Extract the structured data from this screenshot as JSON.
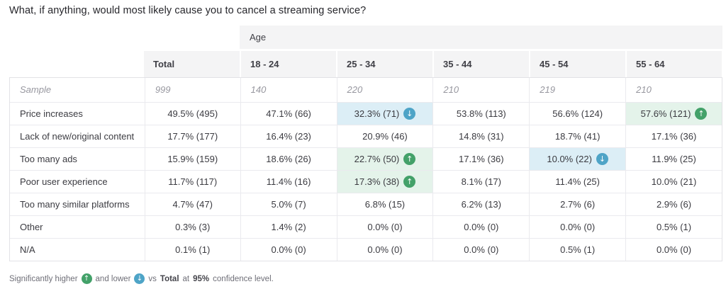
{
  "title": "What, if anything, would most likely cause you to cancel a streaming service?",
  "colors": {
    "header_bg": "#f4f4f5",
    "higher_badge": "#43a169",
    "higher_bg": "#e4f3ea",
    "lower_badge": "#4ea4c7",
    "lower_bg": "#dceef6"
  },
  "icons": {
    "higher": "arrow-up-circle-icon",
    "lower": "arrow-down-circle-icon",
    "glyph_up": "↑",
    "glyph_down": "↓"
  },
  "table": {
    "age_group_label": "Age",
    "columns": [
      "Total",
      "18 - 24",
      "25 - 34",
      "35 - 44",
      "45 - 54",
      "55 - 64"
    ],
    "sample": {
      "label": "Sample",
      "values": [
        "999",
        "140",
        "220",
        "210",
        "219",
        "210"
      ]
    },
    "rows": [
      {
        "label": "Price increases",
        "cells": [
          {
            "text": "49.5% (495)"
          },
          {
            "text": "47.1% (66)"
          },
          {
            "text": "32.3% (71)",
            "flag": "lower"
          },
          {
            "text": "53.8% (113)"
          },
          {
            "text": "56.6% (124)"
          },
          {
            "text": "57.6% (121)",
            "flag": "higher"
          }
        ]
      },
      {
        "label": "Lack of new/original content",
        "cells": [
          {
            "text": "17.7% (177)"
          },
          {
            "text": "16.4% (23)"
          },
          {
            "text": "20.9% (46)"
          },
          {
            "text": "14.8% (31)"
          },
          {
            "text": "18.7% (41)"
          },
          {
            "text": "17.1% (36)"
          }
        ]
      },
      {
        "label": "Too many ads",
        "cells": [
          {
            "text": "15.9% (159)"
          },
          {
            "text": "18.6% (26)"
          },
          {
            "text": "22.7% (50)",
            "flag": "higher"
          },
          {
            "text": "17.1% (36)"
          },
          {
            "text": "10.0% (22)",
            "flag": "lower"
          },
          {
            "text": "11.9% (25)"
          }
        ]
      },
      {
        "label": "Poor user experience",
        "cells": [
          {
            "text": "11.7% (117)"
          },
          {
            "text": "11.4% (16)"
          },
          {
            "text": "17.3% (38)",
            "flag": "higher"
          },
          {
            "text": "8.1% (17)"
          },
          {
            "text": "11.4% (25)"
          },
          {
            "text": "10.0% (21)"
          }
        ]
      },
      {
        "label": "Too many similar platforms",
        "cells": [
          {
            "text": "4.7% (47)"
          },
          {
            "text": "5.0% (7)"
          },
          {
            "text": "6.8% (15)"
          },
          {
            "text": "6.2% (13)"
          },
          {
            "text": "2.7% (6)"
          },
          {
            "text": "2.9% (6)"
          }
        ]
      },
      {
        "label": "Other",
        "cells": [
          {
            "text": "0.3% (3)"
          },
          {
            "text": "1.4% (2)"
          },
          {
            "text": "0.0% (0)"
          },
          {
            "text": "0.0% (0)"
          },
          {
            "text": "0.0% (0)"
          },
          {
            "text": "0.5% (1)"
          }
        ]
      },
      {
        "label": "N/A",
        "cells": [
          {
            "text": "0.1% (1)"
          },
          {
            "text": "0.0% (0)"
          },
          {
            "text": "0.0% (0)"
          },
          {
            "text": "0.0% (0)"
          },
          {
            "text": "0.5% (1)"
          },
          {
            "text": "0.0% (0)"
          }
        ]
      }
    ]
  },
  "footer": {
    "higher_text": "Significantly higher",
    "lower_text": "and lower",
    "vs_text": "vs",
    "total_bold": "Total",
    "at_text": "at",
    "confidence_bold": "95%",
    "tail_text": "confidence level."
  },
  "chart_data": {
    "type": "table",
    "title": "What, if anything, would most likely cause you to cancel a streaming service?",
    "column_group": "Age",
    "columns": [
      "Total",
      "18 - 24",
      "25 - 34",
      "35 - 44",
      "45 - 54",
      "55 - 64"
    ],
    "sample_sizes": [
      999,
      140,
      220,
      210,
      219,
      210
    ],
    "rows": [
      {
        "label": "Price increases",
        "percent": [
          49.5,
          47.1,
          32.3,
          53.8,
          56.6,
          57.6
        ],
        "counts": [
          495,
          66,
          71,
          113,
          124,
          121
        ],
        "significance": [
          null,
          null,
          "lower",
          null,
          null,
          "higher"
        ]
      },
      {
        "label": "Lack of new/original content",
        "percent": [
          17.7,
          16.4,
          20.9,
          14.8,
          18.7,
          17.1
        ],
        "counts": [
          177,
          23,
          46,
          31,
          41,
          36
        ],
        "significance": [
          null,
          null,
          null,
          null,
          null,
          null
        ]
      },
      {
        "label": "Too many ads",
        "percent": [
          15.9,
          18.6,
          22.7,
          17.1,
          10.0,
          11.9
        ],
        "counts": [
          159,
          26,
          50,
          36,
          22,
          25
        ],
        "significance": [
          null,
          null,
          "higher",
          null,
          "lower",
          null
        ]
      },
      {
        "label": "Poor user experience",
        "percent": [
          11.7,
          11.4,
          17.3,
          8.1,
          11.4,
          10.0
        ],
        "counts": [
          117,
          16,
          38,
          17,
          25,
          21
        ],
        "significance": [
          null,
          null,
          "higher",
          null,
          null,
          null
        ]
      },
      {
        "label": "Too many similar platforms",
        "percent": [
          4.7,
          5.0,
          6.8,
          6.2,
          2.7,
          2.9
        ],
        "counts": [
          47,
          7,
          15,
          13,
          6,
          6
        ],
        "significance": [
          null,
          null,
          null,
          null,
          null,
          null
        ]
      },
      {
        "label": "Other",
        "percent": [
          0.3,
          1.4,
          0.0,
          0.0,
          0.0,
          0.5
        ],
        "counts": [
          3,
          2,
          0,
          0,
          0,
          1
        ],
        "significance": [
          null,
          null,
          null,
          null,
          null,
          null
        ]
      },
      {
        "label": "N/A",
        "percent": [
          0.1,
          0.0,
          0.0,
          0.0,
          0.5,
          0.0
        ],
        "counts": [
          1,
          0,
          0,
          0,
          1,
          0
        ],
        "significance": [
          null,
          null,
          null,
          null,
          null,
          null
        ]
      }
    ],
    "footnote": "Significantly higher and lower vs Total at 95% confidence level."
  }
}
